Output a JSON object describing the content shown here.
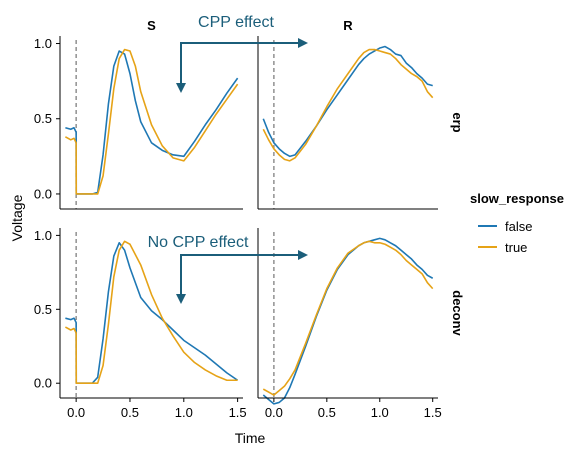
{
  "chart_data": {
    "type": "line",
    "xlabel": "Time",
    "ylabel": "Voltage",
    "xlim": [
      -0.15,
      1.55
    ],
    "ylim": [
      -0.1,
      1.05
    ],
    "x_ticks": [
      "0.0",
      "0.5",
      "1.0",
      "1.5"
    ],
    "y_ticks": [
      "0.0",
      "0.5",
      "1.0"
    ],
    "column_labels": [
      "S",
      "R"
    ],
    "row_labels": [
      "erp",
      "deconv"
    ],
    "legend": {
      "title": "slow_response",
      "position": "right",
      "entries": [
        {
          "label": "false",
          "color": "#1f78b4"
        },
        {
          "label": "true",
          "color": "#e6a317"
        }
      ]
    },
    "annotations": [
      "CPP effect",
      "No CPP effect"
    ],
    "vline_x": 0,
    "panels": [
      {
        "col": "S",
        "row": "erp",
        "series": [
          {
            "name": "false",
            "x": [
              -0.1,
              -0.05,
              -0.02,
              0.0,
              0.001,
              0.15,
              0.2,
              0.25,
              0.3,
              0.35,
              0.4,
              0.45,
              0.5,
              0.55,
              0.6,
              0.7,
              0.8,
              0.9,
              1.0,
              1.1,
              1.2,
              1.3,
              1.4,
              1.5
            ],
            "y": [
              0.44,
              0.43,
              0.44,
              0.41,
              0.0,
              0.0,
              0.01,
              0.26,
              0.6,
              0.85,
              0.95,
              0.93,
              0.8,
              0.62,
              0.48,
              0.34,
              0.29,
              0.26,
              0.25,
              0.35,
              0.46,
              0.56,
              0.67,
              0.77
            ]
          },
          {
            "name": "true",
            "x": [
              -0.1,
              -0.05,
              -0.02,
              0.0,
              0.001,
              0.15,
              0.2,
              0.25,
              0.3,
              0.35,
              0.4,
              0.45,
              0.5,
              0.55,
              0.6,
              0.7,
              0.8,
              0.9,
              1.0,
              1.1,
              1.2,
              1.3,
              1.4,
              1.5
            ],
            "y": [
              0.38,
              0.36,
              0.37,
              0.34,
              0.0,
              0.0,
              0.0,
              0.12,
              0.4,
              0.7,
              0.9,
              0.96,
              0.95,
              0.85,
              0.68,
              0.46,
              0.32,
              0.24,
              0.22,
              0.31,
              0.42,
              0.53,
              0.63,
              0.73
            ]
          }
        ]
      },
      {
        "col": "R",
        "row": "erp",
        "series": [
          {
            "name": "false",
            "x": [
              -0.1,
              -0.05,
              0.0,
              0.05,
              0.1,
              0.15,
              0.2,
              0.3,
              0.4,
              0.5,
              0.6,
              0.7,
              0.8,
              0.85,
              0.9,
              0.95,
              1.0,
              1.05,
              1.1,
              1.15,
              1.2,
              1.25,
              1.3,
              1.35,
              1.4,
              1.45,
              1.5
            ],
            "y": [
              0.5,
              0.41,
              0.34,
              0.3,
              0.27,
              0.25,
              0.26,
              0.35,
              0.45,
              0.56,
              0.66,
              0.76,
              0.86,
              0.9,
              0.93,
              0.95,
              0.97,
              0.98,
              0.96,
              0.93,
              0.92,
              0.87,
              0.84,
              0.8,
              0.77,
              0.73,
              0.72
            ]
          },
          {
            "name": "true",
            "x": [
              -0.1,
              -0.05,
              0.0,
              0.05,
              0.1,
              0.15,
              0.2,
              0.3,
              0.4,
              0.5,
              0.6,
              0.7,
              0.8,
              0.85,
              0.9,
              0.95,
              1.0,
              1.05,
              1.1,
              1.15,
              1.2,
              1.25,
              1.3,
              1.35,
              1.4,
              1.45,
              1.5
            ],
            "y": [
              0.43,
              0.36,
              0.3,
              0.26,
              0.23,
              0.22,
              0.24,
              0.33,
              0.45,
              0.58,
              0.7,
              0.8,
              0.9,
              0.94,
              0.96,
              0.96,
              0.95,
              0.94,
              0.93,
              0.9,
              0.86,
              0.83,
              0.8,
              0.78,
              0.75,
              0.68,
              0.64
            ]
          }
        ]
      },
      {
        "col": "S",
        "row": "deconv",
        "series": [
          {
            "name": "false",
            "x": [
              -0.1,
              -0.05,
              -0.02,
              0.0,
              0.001,
              0.15,
              0.2,
              0.25,
              0.3,
              0.35,
              0.4,
              0.45,
              0.5,
              0.6,
              0.7,
              0.8,
              0.9,
              1.0,
              1.1,
              1.2,
              1.3,
              1.4,
              1.5
            ],
            "y": [
              0.44,
              0.43,
              0.44,
              0.41,
              0.0,
              0.0,
              0.04,
              0.3,
              0.62,
              0.86,
              0.95,
              0.9,
              0.78,
              0.58,
              0.49,
              0.43,
              0.36,
              0.29,
              0.24,
              0.19,
              0.13,
              0.07,
              0.02
            ]
          },
          {
            "name": "true",
            "x": [
              -0.1,
              -0.05,
              -0.02,
              0.0,
              0.001,
              0.15,
              0.2,
              0.25,
              0.3,
              0.35,
              0.4,
              0.45,
              0.5,
              0.6,
              0.7,
              0.8,
              0.9,
              1.0,
              1.1,
              1.2,
              1.3,
              1.4,
              1.5
            ],
            "y": [
              0.38,
              0.36,
              0.37,
              0.34,
              0.0,
              0.0,
              0.0,
              0.12,
              0.4,
              0.72,
              0.9,
              0.96,
              0.94,
              0.8,
              0.6,
              0.44,
              0.32,
              0.21,
              0.14,
              0.09,
              0.05,
              0.02,
              0.02
            ]
          }
        ]
      },
      {
        "col": "R",
        "row": "deconv",
        "series": [
          {
            "name": "false",
            "x": [
              -0.1,
              -0.05,
              0.0,
              0.05,
              0.1,
              0.15,
              0.2,
              0.3,
              0.4,
              0.5,
              0.6,
              0.7,
              0.8,
              0.85,
              0.9,
              0.95,
              1.0,
              1.05,
              1.1,
              1.15,
              1.2,
              1.25,
              1.3,
              1.35,
              1.4,
              1.45,
              1.5
            ],
            "y": [
              -0.08,
              -0.11,
              -0.14,
              -0.13,
              -0.1,
              -0.03,
              0.06,
              0.25,
              0.45,
              0.63,
              0.77,
              0.87,
              0.93,
              0.95,
              0.96,
              0.97,
              0.98,
              0.97,
              0.95,
              0.93,
              0.9,
              0.87,
              0.84,
              0.8,
              0.77,
              0.73,
              0.71
            ]
          },
          {
            "name": "true",
            "x": [
              -0.1,
              -0.05,
              0.0,
              0.05,
              0.1,
              0.15,
              0.2,
              0.3,
              0.4,
              0.5,
              0.6,
              0.7,
              0.8,
              0.85,
              0.9,
              0.95,
              1.0,
              1.05,
              1.1,
              1.15,
              1.2,
              1.25,
              1.3,
              1.35,
              1.4,
              1.45,
              1.5
            ],
            "y": [
              -0.04,
              -0.06,
              -0.08,
              -0.05,
              -0.02,
              0.03,
              0.09,
              0.27,
              0.46,
              0.64,
              0.78,
              0.88,
              0.93,
              0.95,
              0.96,
              0.95,
              0.95,
              0.94,
              0.92,
              0.9,
              0.87,
              0.83,
              0.8,
              0.77,
              0.74,
              0.68,
              0.64
            ]
          }
        ]
      }
    ]
  }
}
